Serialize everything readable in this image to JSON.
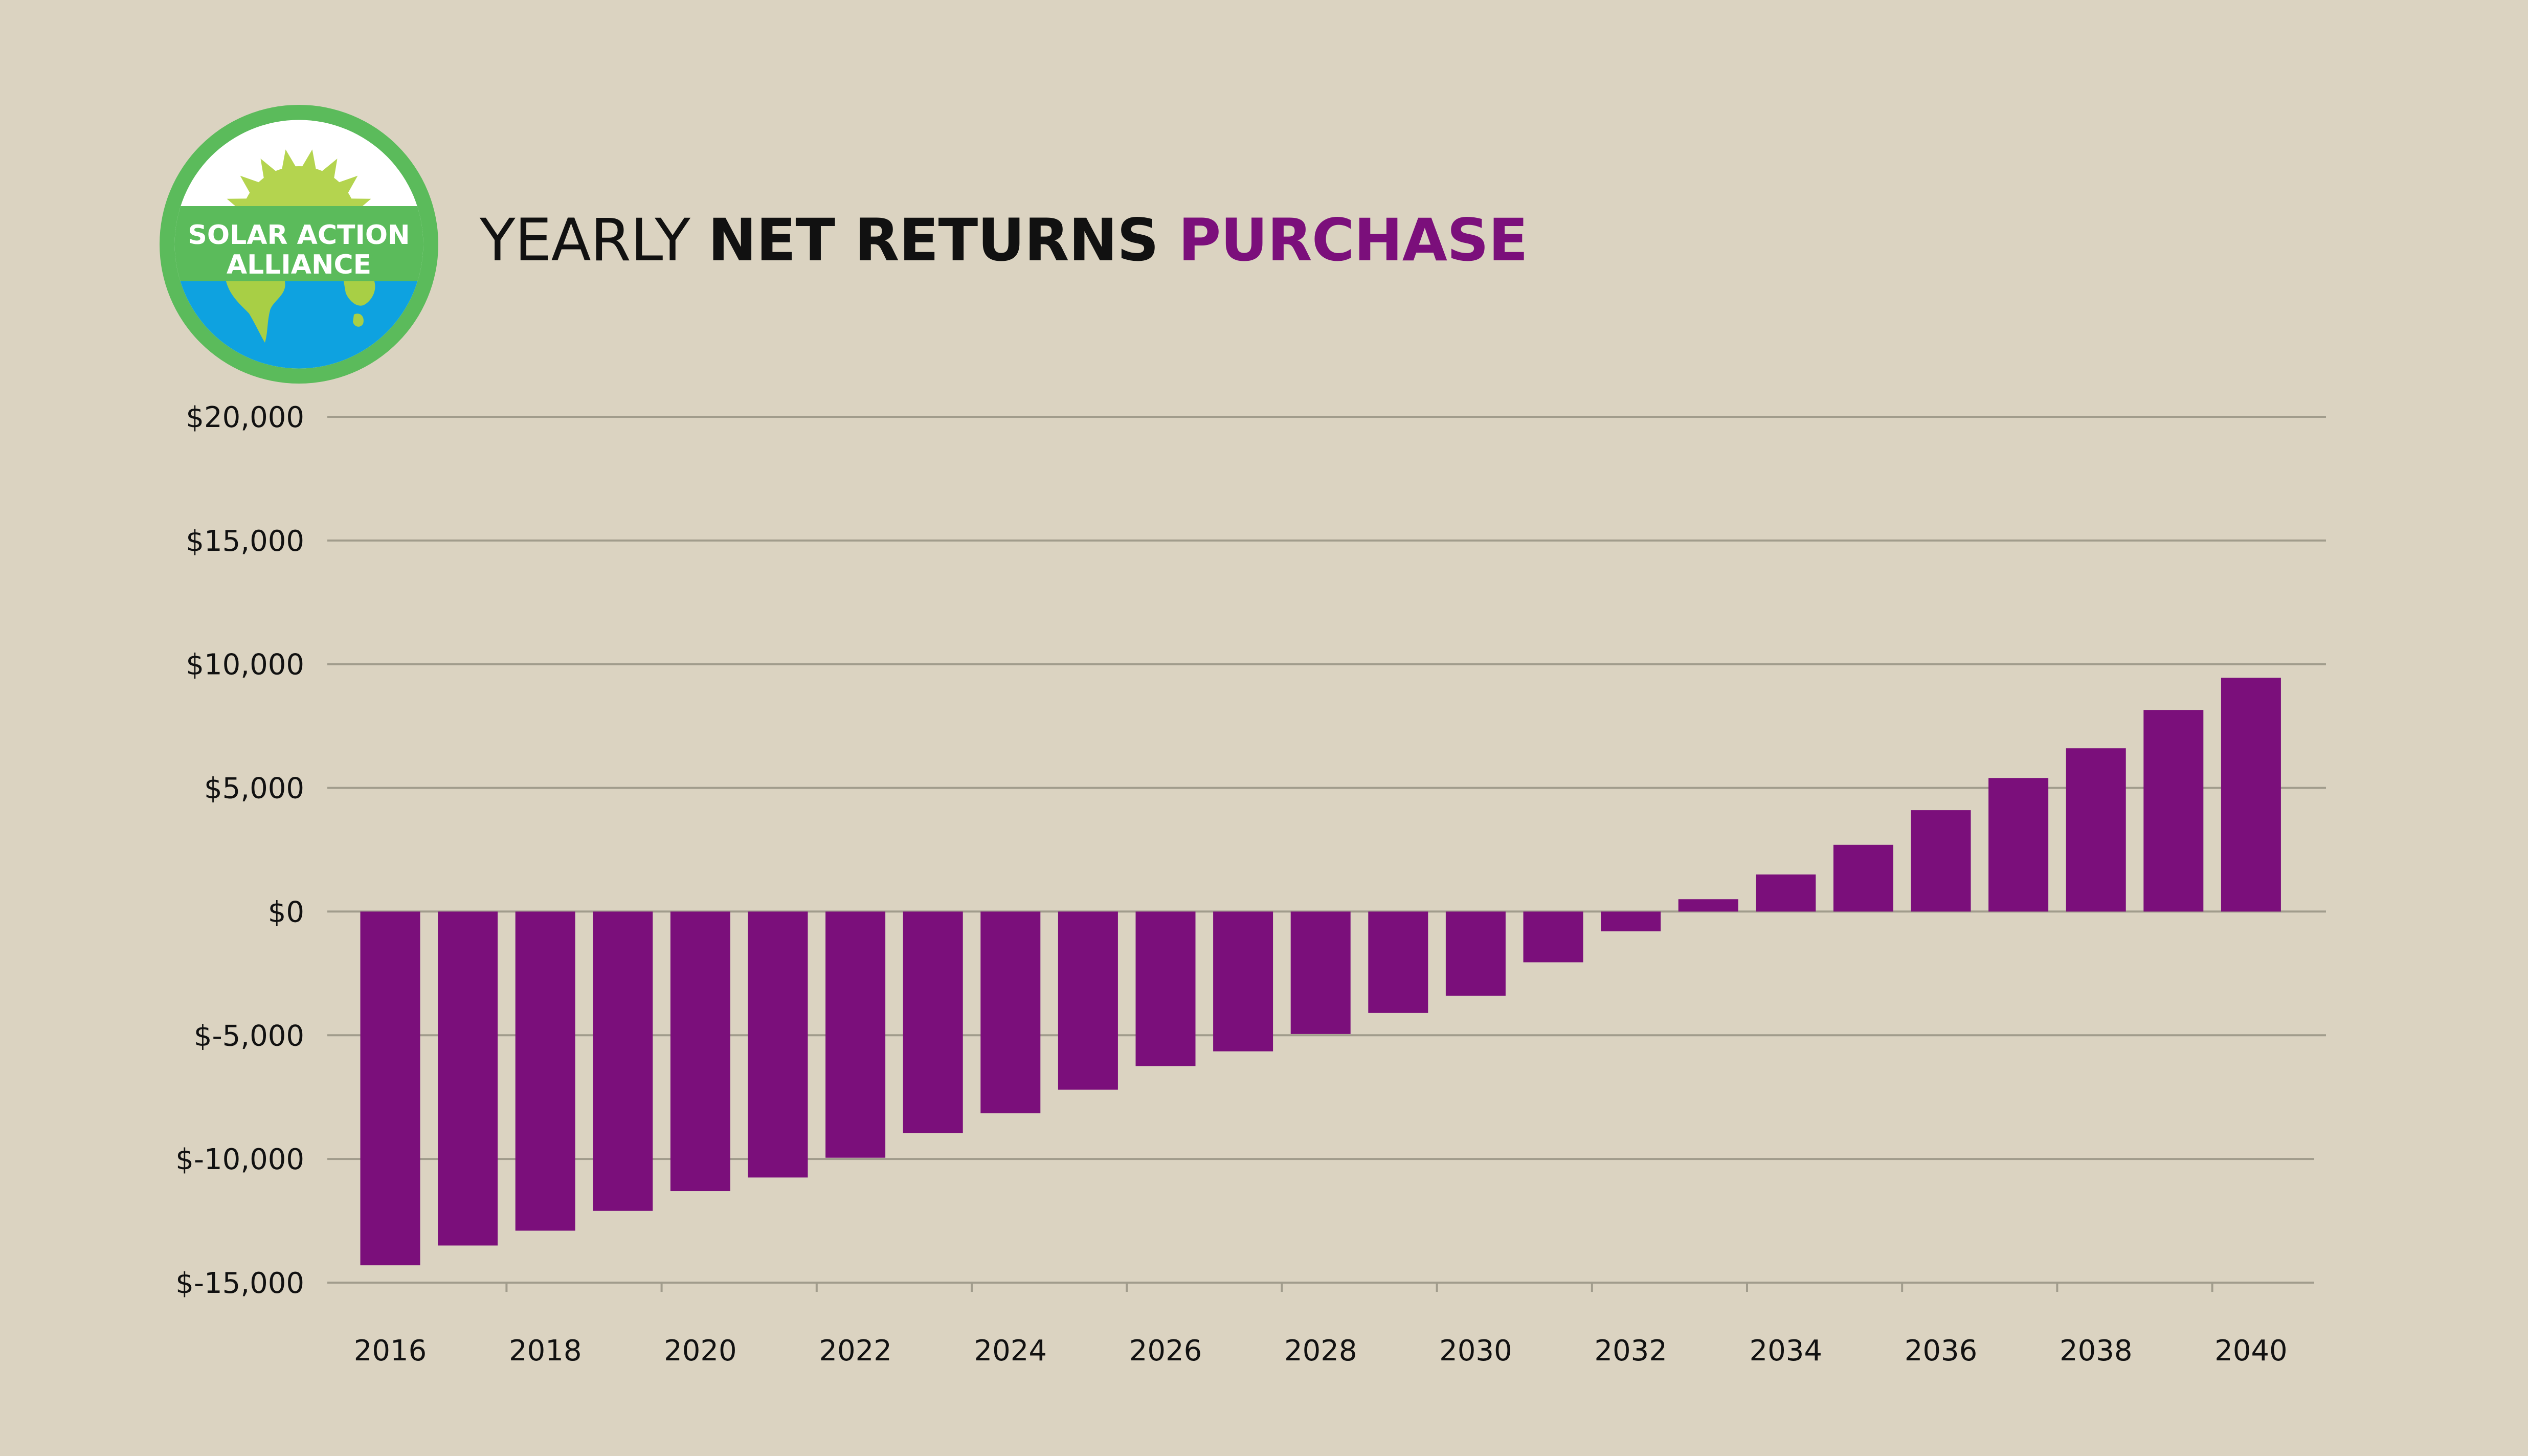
{
  "logo": {
    "line1": "SOLAR ACTION",
    "line2": "ALLIANCE",
    "ring_color": "#5bbb5b",
    "sun_color": "#b4d44f",
    "banner_color": "#5bbb5b",
    "globe_color": "#0ea2e0",
    "land_color": "#a8cf45"
  },
  "title": {
    "part1": "YEARLY ",
    "part2": "NET RETURNS ",
    "part3": "PURCHASE"
  },
  "colors": {
    "bar": "#7b0f7b",
    "grid": "#a19c8c",
    "text": "#111111",
    "background": "#dbd3c1"
  },
  "chart_data": {
    "type": "bar",
    "title": "YEARLY NET RETURNS PURCHASE",
    "xlabel": "",
    "ylabel": "",
    "categories": [
      "2016",
      "2017",
      "2018",
      "2019",
      "2020",
      "2021",
      "2022",
      "2023",
      "2024",
      "2025",
      "2026",
      "2027",
      "2028",
      "2029",
      "2030",
      "2031",
      "2032",
      "2033",
      "2034",
      "2035",
      "2036",
      "2037",
      "2038",
      "2039",
      "2040"
    ],
    "values": [
      -14300,
      -13500,
      -12900,
      -12100,
      -11300,
      -10750,
      -9950,
      -8950,
      -8150,
      -7200,
      -6250,
      -5650,
      -4950,
      -4100,
      -3400,
      -2050,
      -800,
      500,
      1500,
      2700,
      4100,
      5400,
      6600,
      8150,
      9450
    ],
    "x_tick_labels": [
      "2016",
      "2018",
      "2020",
      "2022",
      "2024",
      "2026",
      "2028",
      "2030",
      "2032",
      "2034",
      "2036",
      "2038",
      "2040"
    ],
    "y_tick_labels": [
      "$20,000",
      "$15,000",
      "$10,000",
      "$5,000",
      "$0",
      "$-5,000",
      "$-10,000",
      "$-15,000"
    ],
    "y_ticks": [
      20000,
      15000,
      10000,
      5000,
      0,
      -5000,
      -10000,
      -15000
    ],
    "ylim": [
      -15000,
      20000
    ],
    "grid": true,
    "legend": "none"
  }
}
